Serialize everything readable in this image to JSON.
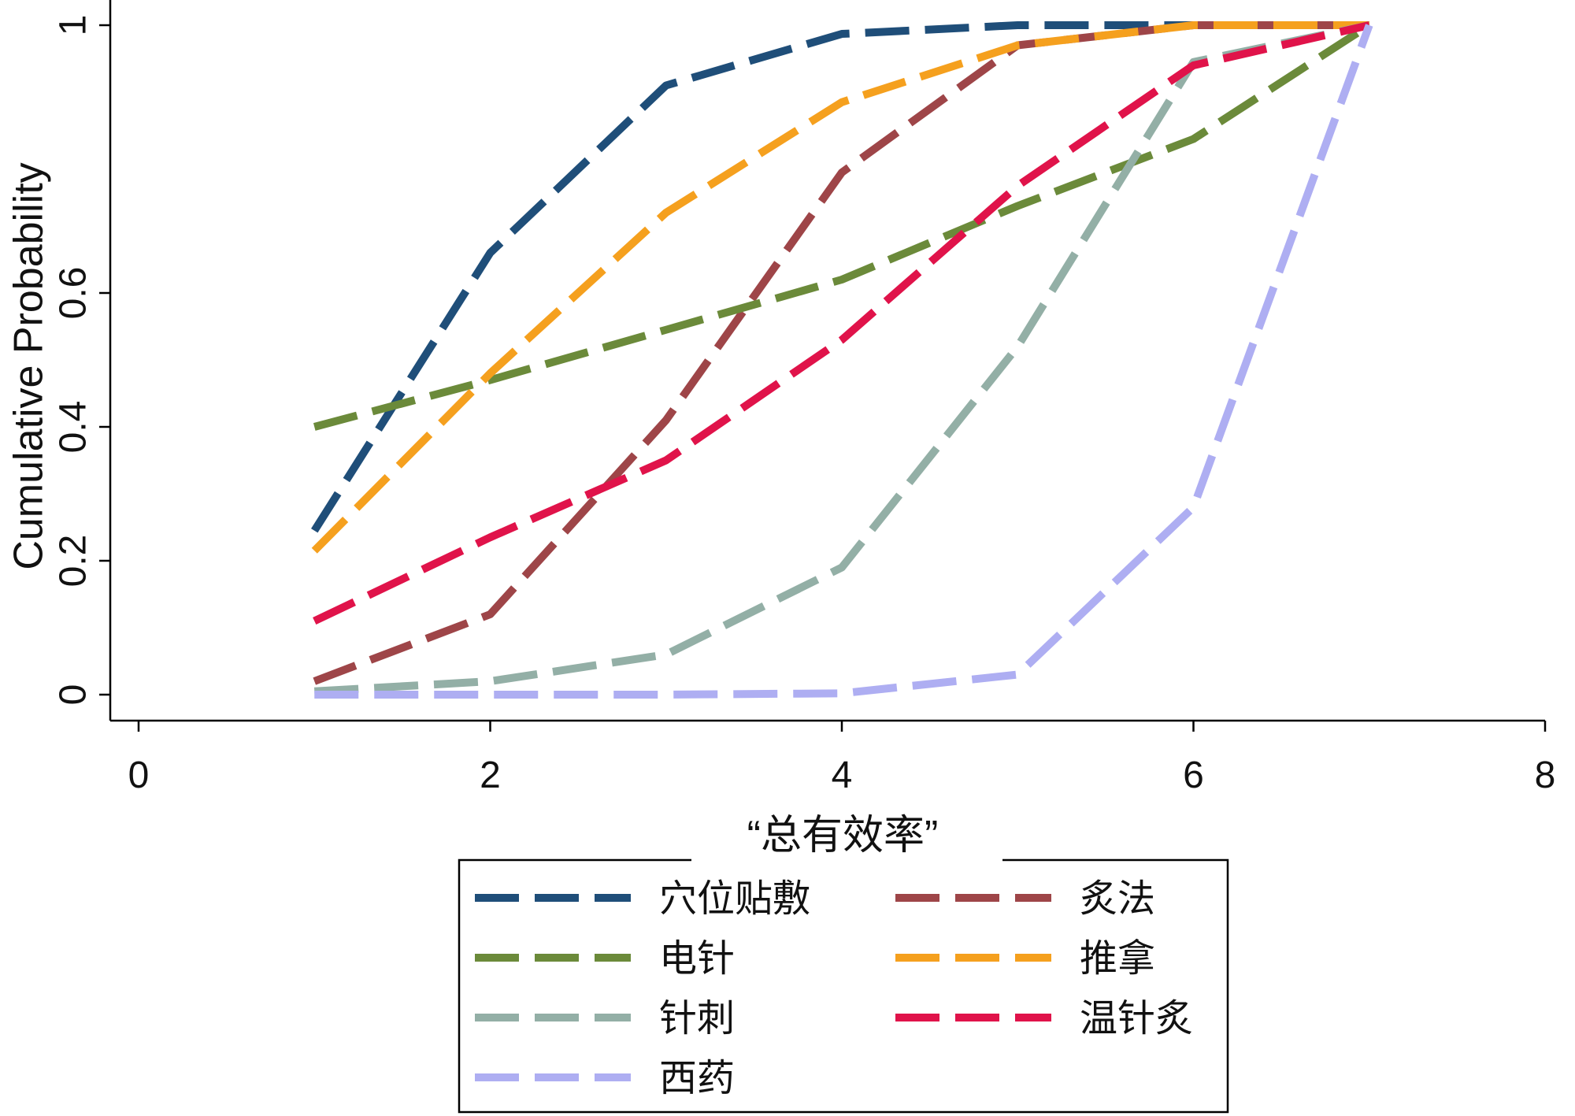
{
  "chart_data": {
    "type": "line",
    "xlabel": "“总有效率”",
    "ylabel": "Cumulative Probability",
    "xlim": [
      0,
      8
    ],
    "ylim": [
      0,
      1
    ],
    "xticks": [
      0,
      2,
      4,
      6,
      8
    ],
    "yticks": [
      0,
      0.2,
      0.4,
      0.6,
      1
    ],
    "xtick_labels": [
      "0",
      "2",
      "4",
      "6",
      "8"
    ],
    "ytick_labels": [
      "0",
      "0.2",
      "0.4",
      "0.6",
      "1"
    ],
    "grid": false,
    "legend_position": "bottom",
    "legend_columns": 2,
    "x": [
      1,
      2,
      3,
      4,
      5,
      6,
      7
    ],
    "series": [
      {
        "name": "穴位贴敷",
        "color": "#1f4e79",
        "values": [
          0.245,
          0.66,
          0.91,
          0.987,
          1.0,
          1.0,
          1.0
        ]
      },
      {
        "name": "炙法",
        "color": "#9e4548",
        "values": [
          0.02,
          0.12,
          0.41,
          0.78,
          0.97,
          1.0,
          1.0
        ]
      },
      {
        "name": "电针",
        "color": "#6b8a3a",
        "values": [
          0.4,
          0.47,
          0.545,
          0.62,
          0.73,
          0.83,
          1.0
        ]
      },
      {
        "name": "推拿",
        "color": "#f5a01e",
        "values": [
          0.215,
          0.48,
          0.72,
          0.885,
          0.97,
          1.0,
          1.0
        ]
      },
      {
        "name": "针刺",
        "color": "#93afa6",
        "values": [
          0.005,
          0.02,
          0.06,
          0.19,
          0.52,
          0.945,
          1.0
        ]
      },
      {
        "name": "温针炙",
        "color": "#e0134a",
        "values": [
          0.11,
          0.235,
          0.35,
          0.53,
          0.76,
          0.94,
          1.0
        ]
      },
      {
        "name": "西药",
        "color": "#aeaef2",
        "values": [
          0.0,
          0.0,
          0.0,
          0.002,
          0.03,
          0.28,
          1.0
        ]
      }
    ]
  }
}
